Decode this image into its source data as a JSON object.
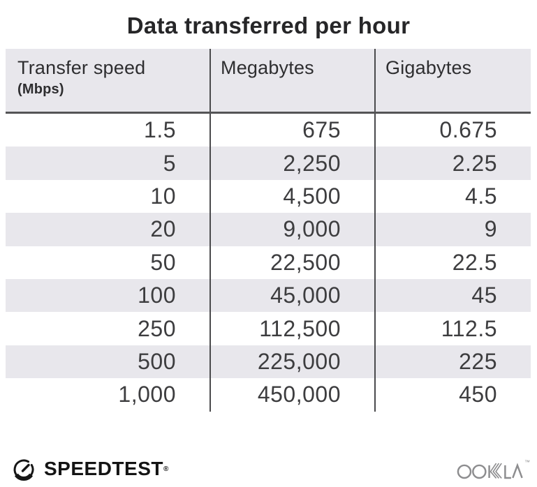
{
  "title": "Data transferred per hour",
  "table": {
    "columns": [
      {
        "label": "Transfer speed",
        "sublabel": "(Mbps)"
      },
      {
        "label": "Megabytes"
      },
      {
        "label": "Gigabytes"
      }
    ],
    "rows": [
      [
        "1.5",
        "675",
        "0.675"
      ],
      [
        "5",
        "2,250",
        "2.25"
      ],
      [
        "10",
        "4,500",
        "4.5"
      ],
      [
        "20",
        "9,000",
        "9"
      ],
      [
        "50",
        "22,500",
        "22.5"
      ],
      [
        "100",
        "45,000",
        "45"
      ],
      [
        "250",
        "112,500",
        "112.5"
      ],
      [
        "500",
        "225,000",
        "225"
      ],
      [
        "1,000",
        "450,000",
        "450"
      ]
    ]
  },
  "chart_data": {
    "type": "table",
    "title": "Data transferred per hour",
    "columns": [
      "Transfer speed (Mbps)",
      "Megabytes",
      "Gigabytes"
    ],
    "rows": [
      [
        1.5,
        675,
        0.675
      ],
      [
        5,
        2250,
        2.25
      ],
      [
        10,
        4500,
        4.5
      ],
      [
        20,
        9000,
        9
      ],
      [
        50,
        22500,
        22.5
      ],
      [
        100,
        45000,
        45
      ],
      [
        250,
        112500,
        112.5
      ],
      [
        500,
        225000,
        225
      ],
      [
        1000,
        450000,
        450
      ]
    ]
  },
  "footer": {
    "brand": "SPEEDTEST",
    "brand_mark": "®",
    "vendor": "OOKLA",
    "vendor_mark": "™"
  },
  "colors": {
    "header_bg": "#e8e7ec",
    "stripe_bg": "#e8e7ec",
    "divider": "#4a4a4c",
    "header_rule": "#545456",
    "title_text": "#262628",
    "cell_text": "#3d3d3f",
    "logo_black": "#141414",
    "ookla_gray": "#8d8d8f"
  }
}
